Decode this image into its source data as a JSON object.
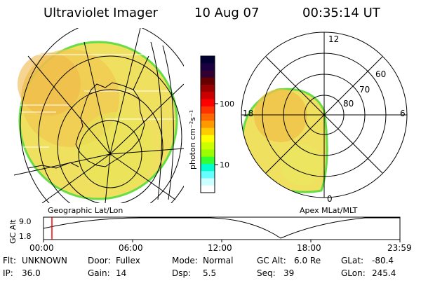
{
  "header": {
    "title": "Ultraviolet Imager",
    "date": "10 Aug 07",
    "time": "00:35:14 UT"
  },
  "colorbar": {
    "unit_label": "photon cm⁻²s⁻¹",
    "ticks": [
      "100",
      "10"
    ],
    "colors": [
      "#000033",
      "#1a0040",
      "#330033",
      "#660000",
      "#990000",
      "#cc0000",
      "#ff0000",
      "#ff3300",
      "#ff6600",
      "#ff9900",
      "#ffcc00",
      "#ffff00",
      "#ccff00",
      "#99ff00",
      "#33ff33",
      "#00ffcc",
      "#66ffff",
      "#ccffff",
      "#ffffff"
    ]
  },
  "left_map": {
    "label": "Geographic Lat/Lon"
  },
  "right_map": {
    "label": "Apex MLat/MLT",
    "mlt_labels": [
      "12",
      "18",
      "6",
      "0"
    ],
    "lat_labels": [
      "60",
      "70",
      "80"
    ]
  },
  "timeline": {
    "ylabel": "GC Alt",
    "yticks": [
      "9.0",
      "1.8"
    ],
    "xticks": [
      "00:00",
      "06:00",
      "12:00",
      "18:00",
      "23:59"
    ]
  },
  "info": {
    "row1": [
      {
        "key": "Flt:",
        "value": "UNKNOWN"
      },
      {
        "key": "Door:",
        "value": "Fullex"
      },
      {
        "key": "Mode:",
        "value": "Normal"
      },
      {
        "key": "GC Alt:",
        "value": "6.0 Re"
      },
      {
        "key": "GLat:",
        "value": "-80.4"
      }
    ],
    "row2": [
      {
        "key": "IP:",
        "value": "36.0"
      },
      {
        "key": "Gain:",
        "value": "14"
      },
      {
        "key": "Dsp:",
        "value": "5.5"
      },
      {
        "key": "Seq:",
        "value": "39"
      },
      {
        "key": "GLon:",
        "value": "245.4"
      }
    ]
  }
}
